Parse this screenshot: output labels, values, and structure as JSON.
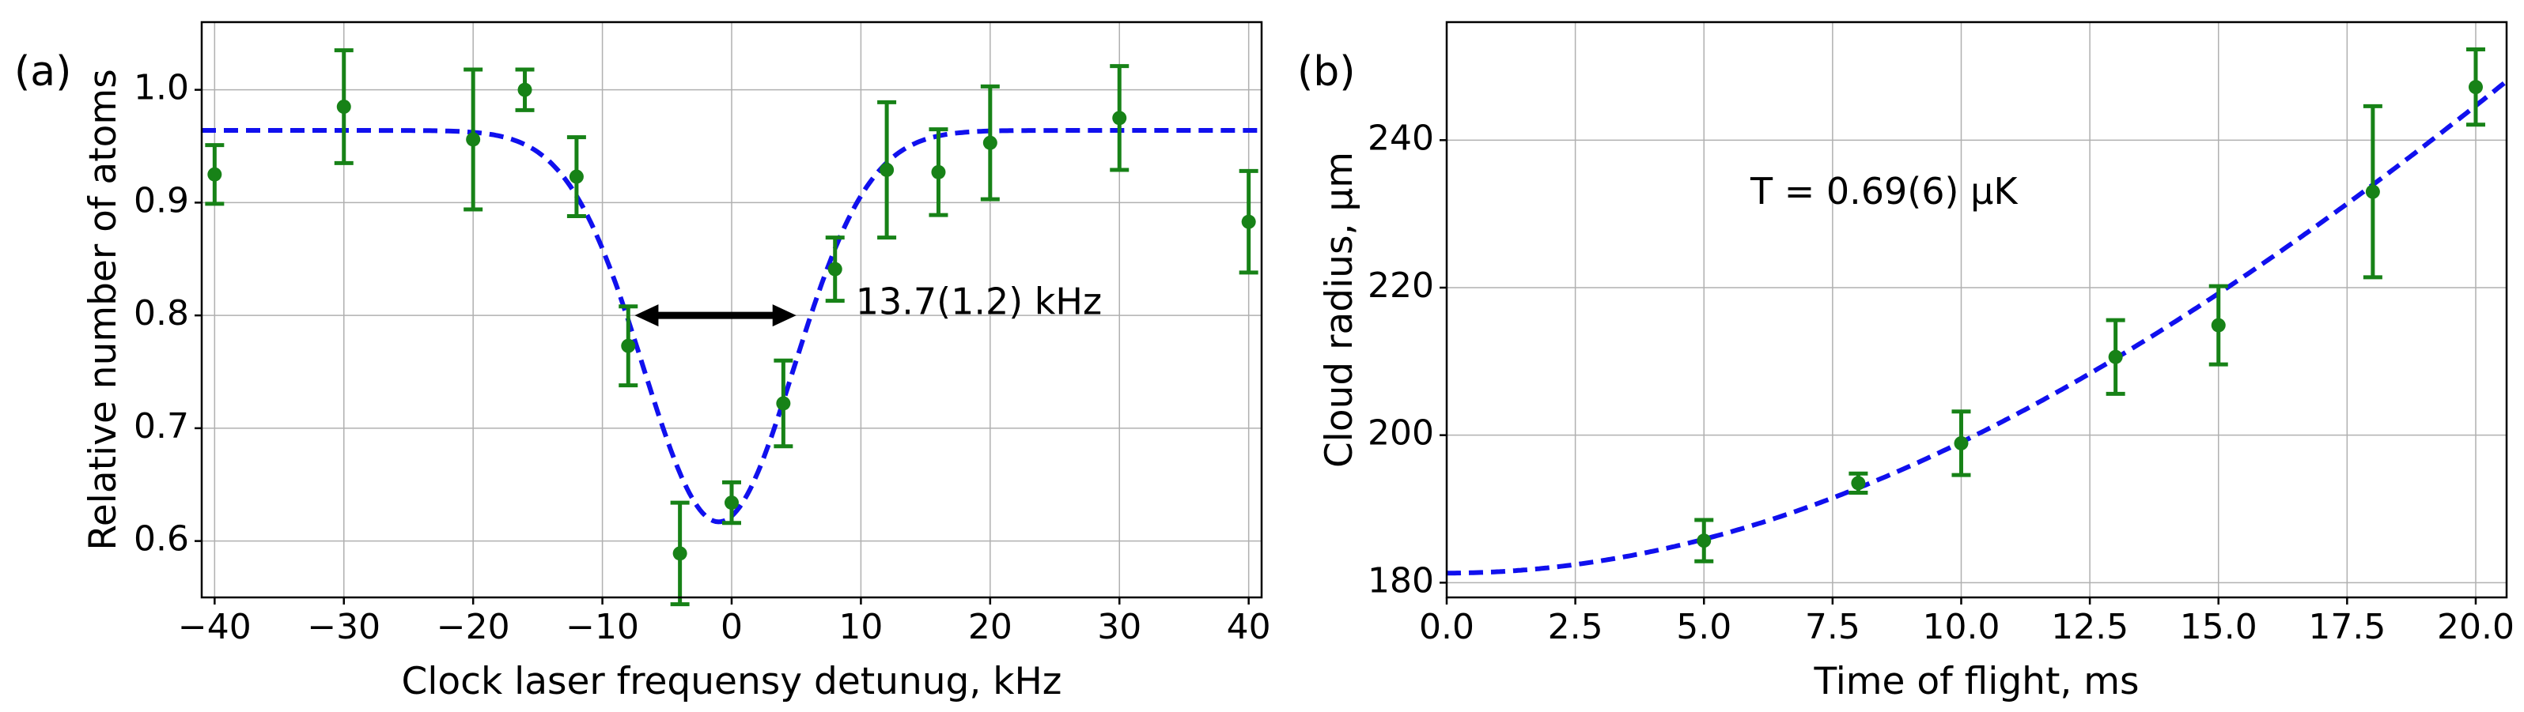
{
  "chart_data": [
    {
      "type": "scatter",
      "panel_label": "(a)",
      "xlabel": "Clock laser frequensy detunug, kHz",
      "ylabel": "Relative number of atoms",
      "xlim": [
        -41,
        41
      ],
      "ylim": [
        0.55,
        1.06
      ],
      "xticks": [
        -40,
        -30,
        -20,
        -10,
        0,
        10,
        20,
        30,
        40
      ],
      "xtick_labels": [
        "−40",
        "−30",
        "−20",
        "−10",
        "0",
        "10",
        "20",
        "30",
        "40"
      ],
      "yticks": [
        0.6,
        0.7,
        0.8,
        0.9,
        1.0
      ],
      "ytick_labels": [
        "0.6",
        "0.7",
        "0.8",
        "0.9",
        "1.0"
      ],
      "grid": true,
      "data_color": "#178217",
      "fit_color": "#1010ee",
      "points": [
        {
          "x": -40,
          "y": 0.925,
          "err": 0.026
        },
        {
          "x": -30,
          "y": 0.985,
          "err": 0.05
        },
        {
          "x": -20,
          "y": 0.956,
          "err": 0.062
        },
        {
          "x": -16,
          "y": 1.0,
          "err": 0.018
        },
        {
          "x": -12,
          "y": 0.923,
          "err": 0.035
        },
        {
          "x": -8,
          "y": 0.773,
          "err": 0.035
        },
        {
          "x": -4,
          "y": 0.589,
          "err": 0.045
        },
        {
          "x": 0,
          "y": 0.634,
          "err": 0.018
        },
        {
          "x": 4,
          "y": 0.722,
          "err": 0.038
        },
        {
          "x": 8,
          "y": 0.841,
          "err": 0.028
        },
        {
          "x": 12,
          "y": 0.929,
          "err": 0.06
        },
        {
          "x": 16,
          "y": 0.927,
          "err": 0.038
        },
        {
          "x": 20,
          "y": 0.953,
          "err": 0.05
        },
        {
          "x": 30,
          "y": 0.975,
          "err": 0.046
        },
        {
          "x": 40,
          "y": 0.883,
          "err": 0.045
        }
      ],
      "fit": {
        "model": "gaussian_dip",
        "offset": 0.964,
        "depth": 0.347,
        "center": -1.0,
        "fwhm": 13.7
      },
      "annotation": {
        "text": "13.7(1.2) kHz",
        "arrow_from": -7.5,
        "arrow_to": 5.0,
        "arrow_y": 0.8
      }
    },
    {
      "type": "scatter",
      "panel_label": "(b)",
      "xlabel": "Time of flight, ms",
      "ylabel": "Cloud radius, µm",
      "xlim": [
        0,
        20.6
      ],
      "ylim": [
        178,
        256
      ],
      "xticks": [
        0.0,
        2.5,
        5.0,
        7.5,
        10.0,
        12.5,
        15.0,
        17.5,
        20.0
      ],
      "xtick_labels": [
        "0.0",
        "2.5",
        "5.0",
        "7.5",
        "10.0",
        "12.5",
        "15.0",
        "17.5",
        "20.0"
      ],
      "yticks": [
        180,
        200,
        220,
        240
      ],
      "ytick_labels": [
        "180",
        "200",
        "220",
        "240"
      ],
      "grid": true,
      "data_color": "#178217",
      "fit_color": "#1010ee",
      "points": [
        {
          "x": 5,
          "y": 185.7,
          "err": 2.8
        },
        {
          "x": 8,
          "y": 193.5,
          "err": 1.3
        },
        {
          "x": 10,
          "y": 198.9,
          "err": 4.3
        },
        {
          "x": 13,
          "y": 210.6,
          "err": 5.0
        },
        {
          "x": 15,
          "y": 214.9,
          "err": 5.3
        },
        {
          "x": 18,
          "y": 233.0,
          "err": 11.6
        },
        {
          "x": 20,
          "y": 247.2,
          "err": 5.1
        }
      ],
      "fit": {
        "model": "ballistic_expansion",
        "sigma0": 181.3,
        "coefficient": 0.158
      },
      "annotation": {
        "text": "T = 0.69(6) µK"
      }
    }
  ]
}
